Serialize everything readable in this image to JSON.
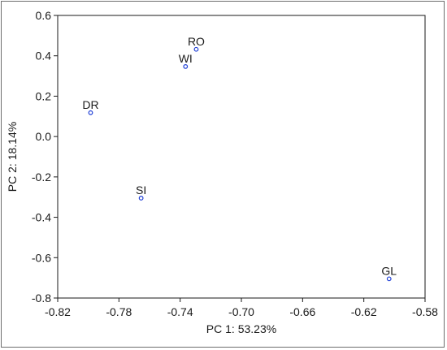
{
  "chart_data": {
    "type": "scatter",
    "xlabel": "PC 1: 53.23%",
    "ylabel": "PC 2: 18.14%",
    "xlim": [
      -0.82,
      -0.58
    ],
    "ylim": [
      -0.8,
      0.6
    ],
    "xticks": [
      "-0.82",
      "-0.78",
      "-0.74",
      "-0.70",
      "-0.66",
      "-0.62",
      "-0.58"
    ],
    "yticks": [
      "0.6",
      "0.4",
      "0.2",
      "0.0",
      "-0.2",
      "-0.4",
      "-0.6",
      "-0.8"
    ],
    "grid": false,
    "point_color": "#1f3fd6",
    "points": [
      {
        "label": "RO",
        "x": -0.7295,
        "y": 0.432
      },
      {
        "label": "WI",
        "x": -0.7365,
        "y": 0.347
      },
      {
        "label": "DR",
        "x": -0.7985,
        "y": 0.118
      },
      {
        "label": "SI",
        "x": -0.7655,
        "y": -0.305
      },
      {
        "label": "GL",
        "x": -0.6035,
        "y": -0.705
      }
    ]
  }
}
